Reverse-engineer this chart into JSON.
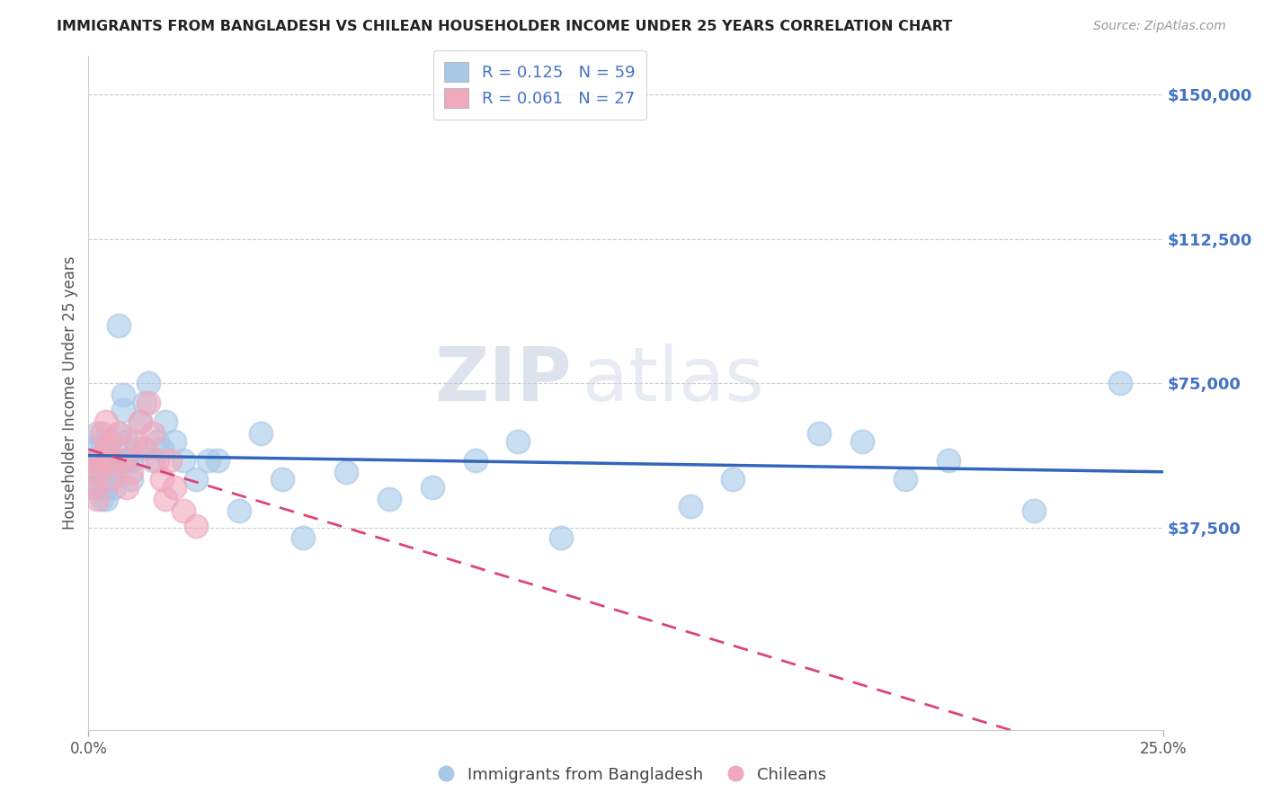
{
  "title": "IMMIGRANTS FROM BANGLADESH VS CHILEAN HOUSEHOLDER INCOME UNDER 25 YEARS CORRELATION CHART",
  "source": "Source: ZipAtlas.com",
  "ylabel": "Householder Income Under 25 years",
  "watermark_zip": "ZIP",
  "watermark_atlas": "atlas",
  "legend_entries": [
    {
      "label": "Immigrants from Bangladesh",
      "color": "#a8c8e8",
      "R": 0.125,
      "N": 59
    },
    {
      "label": "Chileans",
      "color": "#f0a8bc",
      "R": 0.061,
      "N": 27
    }
  ],
  "blue_color": "#a8c8e8",
  "pink_color": "#f0a8bc",
  "blue_line_color": "#3366bb",
  "pink_line_color": "#dd4477",
  "grid_color": "#cccccc",
  "background_color": "#ffffff",
  "title_color": "#222222",
  "axis_label_color": "#555555",
  "right_ytick_color": "#4472C4",
  "xmin": 0.0,
  "xmax": 0.25,
  "ymin": -15000,
  "ymax": 160000,
  "bangladesh_x": [
    0.001,
    0.001,
    0.001,
    0.002,
    0.002,
    0.002,
    0.003,
    0.003,
    0.003,
    0.003,
    0.004,
    0.004,
    0.004,
    0.004,
    0.005,
    0.005,
    0.005,
    0.006,
    0.006,
    0.006,
    0.007,
    0.007,
    0.008,
    0.008,
    0.009,
    0.009,
    0.01,
    0.01,
    0.011,
    0.012,
    0.013,
    0.014,
    0.015,
    0.016,
    0.017,
    0.018,
    0.02,
    0.022,
    0.025,
    0.028,
    0.03,
    0.035,
    0.04,
    0.045,
    0.05,
    0.06,
    0.07,
    0.08,
    0.09,
    0.1,
    0.11,
    0.14,
    0.15,
    0.17,
    0.18,
    0.19,
    0.2,
    0.22,
    0.24
  ],
  "bangladesh_y": [
    58000,
    55000,
    50000,
    62000,
    55000,
    48000,
    60000,
    52000,
    45000,
    55000,
    58000,
    52000,
    48000,
    45000,
    55000,
    60000,
    50000,
    55000,
    48000,
    52000,
    62000,
    90000,
    68000,
    72000,
    60000,
    55000,
    55000,
    50000,
    58000,
    65000,
    70000,
    75000,
    55000,
    60000,
    58000,
    65000,
    60000,
    55000,
    50000,
    55000,
    55000,
    42000,
    62000,
    50000,
    35000,
    52000,
    45000,
    48000,
    55000,
    60000,
    35000,
    43000,
    50000,
    62000,
    60000,
    50000,
    55000,
    42000,
    75000
  ],
  "chilean_x": [
    0.001,
    0.001,
    0.002,
    0.002,
    0.003,
    0.003,
    0.004,
    0.004,
    0.005,
    0.005,
    0.006,
    0.007,
    0.008,
    0.009,
    0.01,
    0.011,
    0.012,
    0.013,
    0.014,
    0.015,
    0.016,
    0.017,
    0.018,
    0.019,
    0.02,
    0.022,
    0.025
  ],
  "chilean_y": [
    55000,
    48000,
    52000,
    45000,
    62000,
    55000,
    65000,
    58000,
    60000,
    50000,
    55000,
    62000,
    55000,
    48000,
    52000,
    60000,
    65000,
    58000,
    70000,
    62000,
    55000,
    50000,
    45000,
    55000,
    48000,
    42000,
    38000
  ]
}
